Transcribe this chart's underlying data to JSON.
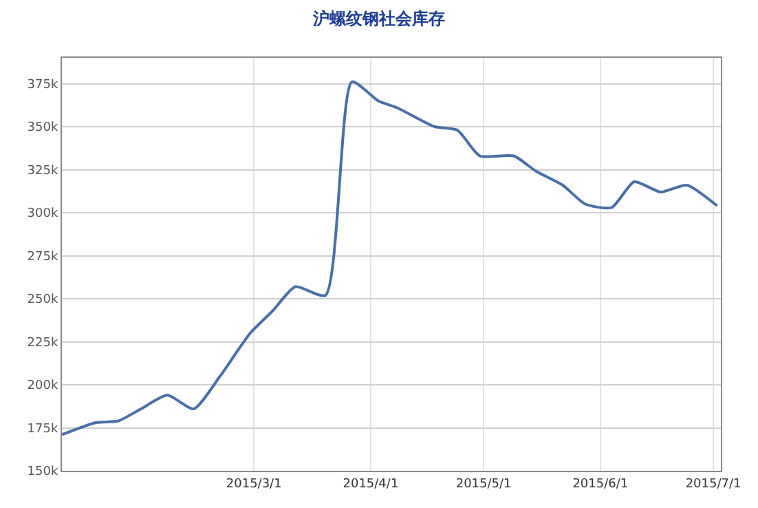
{
  "chart_data": {
    "type": "line",
    "title": "沪螺纹钢社会库存",
    "x": [
      "2015-01-09",
      "2015-01-18",
      "2015-01-24",
      "2015-01-30",
      "2015-02-06",
      "2015-02-13",
      "2015-02-20",
      "2015-02-28",
      "2015-03-06",
      "2015-03-12",
      "2015-03-20",
      "2015-03-27",
      "2015-04-03",
      "2015-04-08",
      "2015-04-18",
      "2015-04-24",
      "2015-04-30",
      "2015-05-09",
      "2015-05-15",
      "2015-05-22",
      "2015-05-28",
      "2015-06-04",
      "2015-06-10",
      "2015-06-17",
      "2015-06-24",
      "2015-07-02"
    ],
    "series": [
      {
        "color": "#4a6fa5",
        "values": [
          171000,
          178000,
          179000,
          186000,
          194000,
          186000,
          205000,
          230000,
          243000,
          257000,
          252000,
          376000,
          365000,
          361000,
          350000,
          348000,
          333000,
          333000,
          324000,
          316000,
          305000,
          303000,
          318000,
          312000,
          316000,
          304000
        ]
      }
    ],
    "xlim": [
      "2015-01-09",
      "2015-07-03"
    ],
    "xticks": [
      {
        "value": "2015-03-01",
        "label": "2015/3/1"
      },
      {
        "value": "2015-04-01",
        "label": "2015/4/1"
      },
      {
        "value": "2015-05-01",
        "label": "2015/5/1"
      },
      {
        "value": "2015-06-01",
        "label": "2015/6/1"
      },
      {
        "value": "2015-07-01",
        "label": "2015/7/1"
      }
    ],
    "ylim": [
      150000,
      390000
    ],
    "yticks": [
      {
        "value": 150000,
        "label": "150k"
      },
      {
        "value": 175000,
        "label": "175k"
      },
      {
        "value": 200000,
        "label": "200k"
      },
      {
        "value": 225000,
        "label": "225k"
      },
      {
        "value": 250000,
        "label": "250k"
      },
      {
        "value": 275000,
        "label": "275k"
      },
      {
        "value": 300000,
        "label": "300k"
      },
      {
        "value": 325000,
        "label": "325k"
      },
      {
        "value": 350000,
        "label": "350k"
      },
      {
        "value": 375000,
        "label": "375k"
      }
    ],
    "grid": true,
    "legend": false,
    "marker": "none",
    "line_style": "solid"
  }
}
